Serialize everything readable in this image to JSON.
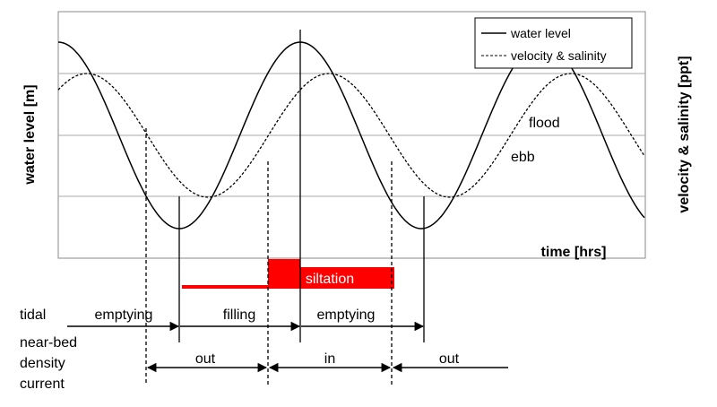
{
  "axes": {
    "y_left": "water level [m]",
    "y_right": "velocity & salinity [ppt]",
    "x": "time [hrs]"
  },
  "legend": [
    "water level",
    "velocity & salinity"
  ],
  "curve_labels": [
    "flood",
    "ebb"
  ],
  "siltation": "siltation",
  "rows": {
    "tidal": {
      "label": "tidal",
      "phases": [
        "emptying",
        "filling",
        "emptying"
      ]
    },
    "current": {
      "label": [
        "near-bed",
        "density",
        "current"
      ],
      "phases": [
        "out",
        "in",
        "out"
      ]
    }
  }
}
